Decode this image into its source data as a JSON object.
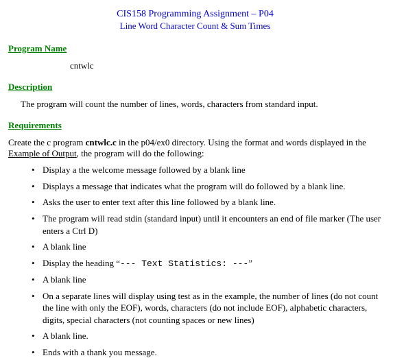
{
  "colors": {
    "title": "#0000cc",
    "heading": "#008000",
    "text": "#000000",
    "background": "#ffffff"
  },
  "title": {
    "line1": "CIS158 Programming Assignment – P04",
    "line2": "Line Word Character Count & Sum Times"
  },
  "sections": {
    "programName": {
      "heading": "Program Name",
      "value": "cntwlc"
    },
    "description": {
      "heading": "Description",
      "text": "The program will count the number of lines, words, characters from standard input."
    },
    "requirements": {
      "heading": "Requirements",
      "intro_pre": "Create the c program ",
      "intro_bold": "cntwlc.c",
      "intro_mid": " in the p04/ex0  directory.  Using the format and words displayed in the ",
      "intro_underline": "Example of Output",
      "intro_post": ", the program will do the following:",
      "bullets": [
        "Display a the welcome message followed by a blank line",
        "Displays a message that indicates what the program will do followed by a blank line.",
        "Asks the user to enter text after this line followed by a blank line.",
        "The program will read stdin (standard input) until it encounters an end of file marker (The user enters a Ctrl D)",
        "A blank line",
        "",
        "A blank line",
        "On a separate lines will display using test as in the example, the number of lines (do not count the line with only the EOF), words, characters (do not include EOF), alphabetic characters, digits, special characters (not counting spaces or new lines)",
        "A blank line.",
        "Ends with a thank you message."
      ],
      "heading_bullet": {
        "pre": "Display the heading “",
        "mono": "---   Text Statistics:      ---",
        "post": "”"
      }
    }
  }
}
